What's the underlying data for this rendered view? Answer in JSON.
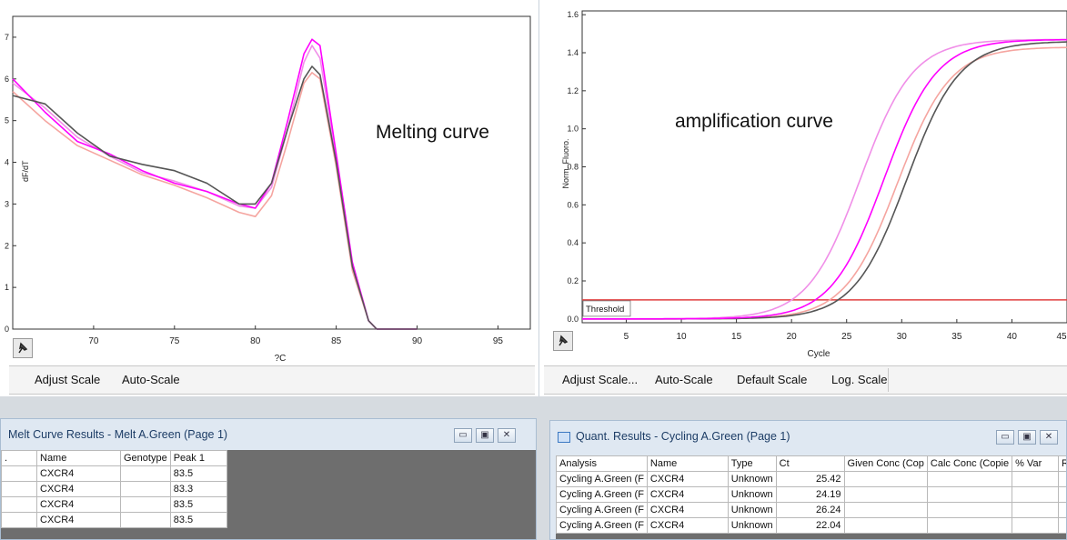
{
  "melt_chart": {
    "annotation": "Melting curve",
    "xlabel": "?C",
    "ylabel": "dF/dT",
    "x_ticks": [
      "70",
      "75",
      "80",
      "85",
      "90",
      "95"
    ],
    "y_ticks": [
      "0",
      "1",
      "2",
      "3",
      "4",
      "5",
      "6",
      "7"
    ]
  },
  "amp_chart": {
    "annotation": "amplification curve",
    "xlabel": "Cycle",
    "ylabel": "Norm. Fluoro.",
    "threshold_label": "Threshold",
    "threshold_value": 0.1,
    "x_ticks": [
      "5",
      "10",
      "15",
      "20",
      "25",
      "30",
      "35",
      "40",
      "45"
    ],
    "y_ticks": [
      "0.0",
      "0.2",
      "0.4",
      "0.6",
      "0.8",
      "1.0",
      "1.2",
      "1.4",
      "1.6"
    ]
  },
  "chart_data": [
    {
      "type": "line",
      "title": "Melting curve",
      "xlabel": "?C",
      "ylabel": "dF/dT",
      "xlim": [
        65,
        97
      ],
      "ylim": [
        0,
        7.5
      ],
      "grid": false,
      "series": [
        {
          "color": "#555555",
          "x": [
            65,
            67,
            69,
            71,
            73,
            75,
            77,
            79,
            80,
            81,
            82,
            83,
            83.5,
            84,
            85,
            86,
            87,
            87.5,
            90
          ],
          "y": [
            5.6,
            5.4,
            4.7,
            4.15,
            3.95,
            3.8,
            3.5,
            3.0,
            3.0,
            3.5,
            4.8,
            6.0,
            6.3,
            6.1,
            4.0,
            1.5,
            0.2,
            0.0,
            0.0
          ]
        },
        {
          "color": "#ff00ff",
          "x": [
            65,
            67,
            69,
            71,
            73,
            75,
            77,
            79,
            80,
            81,
            82,
            83,
            83.5,
            84,
            85,
            86,
            87,
            87.5,
            90
          ],
          "y": [
            6.0,
            5.2,
            4.5,
            4.2,
            3.8,
            3.5,
            3.3,
            3.0,
            2.9,
            3.5,
            5.0,
            6.6,
            6.95,
            6.8,
            4.2,
            1.6,
            0.2,
            0.0,
            0.0
          ]
        },
        {
          "color": "#f08fe8",
          "x": [
            65,
            67,
            69,
            71,
            73,
            75,
            77,
            79,
            80,
            81,
            82,
            83,
            83.5,
            84,
            85,
            86,
            87,
            87.5,
            90
          ],
          "y": [
            5.9,
            5.3,
            4.6,
            4.15,
            3.75,
            3.55,
            3.3,
            2.95,
            2.9,
            3.4,
            4.8,
            6.4,
            6.8,
            6.5,
            4.1,
            1.5,
            0.2,
            0.0,
            0.0
          ]
        },
        {
          "color": "#f5a5a0",
          "x": [
            65,
            67,
            69,
            71,
            73,
            75,
            77,
            79,
            80,
            81,
            82,
            83,
            83.5,
            84,
            85,
            86,
            87,
            87.5,
            90
          ],
          "y": [
            5.7,
            5.0,
            4.4,
            4.05,
            3.7,
            3.45,
            3.15,
            2.8,
            2.7,
            3.2,
            4.5,
            5.9,
            6.15,
            6.0,
            3.9,
            1.4,
            0.2,
            0.0,
            0.0
          ]
        }
      ]
    },
    {
      "type": "line",
      "title": "amplification curve",
      "xlabel": "Cycle",
      "ylabel": "Norm. Fluoro.",
      "xlim": [
        1,
        45
      ],
      "ylim": [
        -0.02,
        1.62
      ],
      "grid": false,
      "threshold": 0.1,
      "series": [
        {
          "color": "#555555",
          "ct": 26.24,
          "plateau": 1.46
        },
        {
          "color": "#ff00ff",
          "ct": 24.19,
          "plateau": 1.47
        },
        {
          "color": "#f08fe8",
          "ct": 22.04,
          "plateau": 1.47
        },
        {
          "color": "#f5a5a0",
          "ct": 25.42,
          "plateau": 1.43
        }
      ]
    }
  ],
  "melt_toolbar": {
    "adjust": "Adjust Scale",
    "auto": "Auto-Scale"
  },
  "amp_toolbar": {
    "adjust": "Adjust Scale...",
    "auto": "Auto-Scale",
    "default": "Default Scale",
    "log": "Log. Scale"
  },
  "melt_results": {
    "title": "Melt Curve Results - Melt A.Green (Page 1)",
    "headers": [
      ".",
      "Name",
      "Genotype",
      "Peak 1"
    ],
    "rows": [
      {
        "name": "CXCR4",
        "genotype": "",
        "peak": "83.5"
      },
      {
        "name": "CXCR4",
        "genotype": "",
        "peak": "83.3"
      },
      {
        "name": "CXCR4",
        "genotype": "",
        "peak": "83.5"
      },
      {
        "name": "CXCR4",
        "genotype": "",
        "peak": "83.5"
      }
    ]
  },
  "quant_results": {
    "title": "Quant. Results - Cycling A.Green (Page 1)",
    "headers": [
      "Analysis",
      "Name",
      "Type",
      "Ct",
      "Given Conc (Cop",
      "Calc Conc (Copie",
      "% Var",
      "Re"
    ],
    "rows": [
      {
        "analysis": "Cycling A.Green (F",
        "name": "CXCR4",
        "type": "Unknown",
        "ct": "25.42"
      },
      {
        "analysis": "Cycling A.Green (F",
        "name": "CXCR4",
        "type": "Unknown",
        "ct": "24.19"
      },
      {
        "analysis": "Cycling A.Green (F",
        "name": "CXCR4",
        "type": "Unknown",
        "ct": "26.24"
      },
      {
        "analysis": "Cycling A.Green (F",
        "name": "CXCR4",
        "type": "Unknown",
        "ct": "22.04"
      }
    ]
  },
  "icons": {
    "pin": "pin-icon",
    "minimize": "minimize-icon",
    "maximize": "maximize-icon",
    "close": "close-icon",
    "window": "window-icon"
  }
}
